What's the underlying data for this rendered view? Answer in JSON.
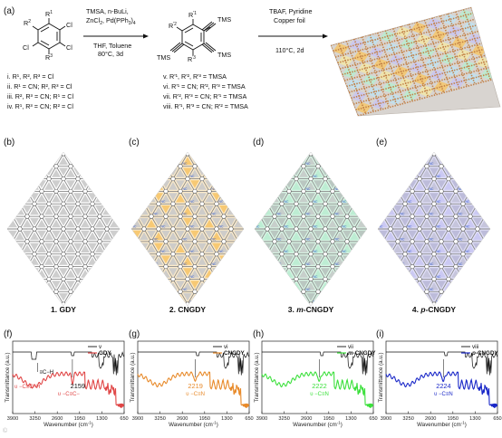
{
  "panels": {
    "a": "(a)",
    "b": "(b)",
    "c": "(c)",
    "d": "(d)",
    "e": "(e)",
    "f": "(f)",
    "g": "(g)",
    "h": "(h)",
    "i": "(i)"
  },
  "scheme": {
    "start_sub": {
      "r1": "R",
      "r1s": "1",
      "r2": "R",
      "r2s": "2",
      "r3": "R",
      "r3s": "3",
      "cl1": "Cl",
      "cl2": "Cl",
      "cl3": "Cl"
    },
    "reagents_top": [
      "TMSA, n-BuLi,",
      "ZnCl",
      "2",
      ", Pd(PPh",
      "3",
      ")",
      "4"
    ],
    "conditions_bottom": [
      "THF, Toluene",
      "80°C, 3d"
    ],
    "inter_sub": {
      "r1": "R",
      "r1s": "'1",
      "r2": "R",
      "r2s": "'2",
      "r3": "R",
      "r3s": "'3",
      "tms1": "TMS",
      "tms2": "TMS",
      "tms3": "TMS"
    },
    "reagents2_top": [
      "TBAF, Pyridine",
      "Copper foil"
    ],
    "conditions2_bottom": "110°C, 2d",
    "list_left": [
      "i. R¹, R², R³ = Cl",
      "ii. R¹ = CN; R², R³ = Cl",
      "iii. R², R³ = CN; R¹ = Cl",
      "iv. R¹, R³ = CN; R² = Cl"
    ],
    "list_right": [
      "v. R'¹, R'², R'³ = TMSA",
      "vi. R'¹ = CN; R'², R'³ = TMSA",
      "vii. R'², R'³ = CN; R'¹ = TMSA",
      "viii. R'¹, R'³ = CN; R'² = TMSA"
    ]
  },
  "structures": [
    {
      "num": "1.",
      "name": "GDY",
      "prefix": "",
      "italic": ""
    },
    {
      "num": "2.",
      "name": "CNGDY",
      "prefix": "",
      "italic": ""
    },
    {
      "num": "3.",
      "name": "-CNGDY",
      "prefix": "",
      "italic": "m"
    },
    {
      "num": "4.",
      "name": "-CNGDY",
      "prefix": "",
      "italic": "p"
    }
  ],
  "cn_label": "NC",
  "colors": {
    "gray_tile": "#c9c9c9",
    "orange_tile": "#f6c56a",
    "green_tile": "#b9ecd0",
    "blue_tile": "#c9c6f2",
    "lattice": "#8a8a8a",
    "cn_blue": "#2a55d0",
    "gdy_red": "#e04646",
    "cngdy_orange": "#e88a2a",
    "mcngdy_green": "#3ce03c",
    "pcngdy_blue": "#1a28c8"
  },
  "spectra_axes": {
    "ylabel": "Transmittance (a.u.)",
    "xlabel": "Wavenumber (cm",
    "xlabel_sup": "-1",
    "xlabel_end": ")",
    "ticks": [
      "3900",
      "3250",
      "2600",
      "1950",
      "1300",
      "650"
    ],
    "ticks_i": [
      "3900",
      "3250",
      "2600",
      "1950",
      "1300",
      "650"
    ]
  },
  "chart_data": [
    {
      "type": "line",
      "panel": "f",
      "xlabel": "Wavenumber (cm-1)",
      "ylabel": "Transmittance (a.u.)",
      "xlim": [
        3900,
        650
      ],
      "series": [
        {
          "name": "v"
        },
        {
          "name": "GDY"
        }
      ],
      "annotations": [
        {
          "text": "2159",
          "x": 2159
        },
        {
          "text": "υ −C≡C−",
          "x": 2159
        },
        {
          "text": "≡C−H",
          "x": 3280
        },
        {
          "text": "υ −C≡C−H",
          "x": 3280
        }
      ]
    },
    {
      "type": "line",
      "panel": "g",
      "xlabel": "Wavenumber (cm-1)",
      "ylabel": "Transmittance (a.u.)",
      "xlim": [
        3900,
        650
      ],
      "series": [
        {
          "name": "vi"
        },
        {
          "name": "CNGDY"
        }
      ],
      "annotations": [
        {
          "text": "2219",
          "x": 2219
        },
        {
          "text": "υ −C≡N",
          "x": 2219
        }
      ]
    },
    {
      "type": "line",
      "panel": "h",
      "xlabel": "Wavenumber (cm-1)",
      "ylabel": "Transmittance (a.u.)",
      "xlim": [
        3900,
        650
      ],
      "series": [
        {
          "name": "vii"
        },
        {
          "name": "m-CNGDY"
        }
      ],
      "annotations": [
        {
          "text": "2222",
          "x": 2222
        },
        {
          "text": "υ −C≡N",
          "x": 2222
        }
      ]
    },
    {
      "type": "line",
      "panel": "i",
      "xlabel": "Wavenumber (cm-1)",
      "ylabel": "Transmittance (a.u.)",
      "xlim": [
        3900,
        650
      ],
      "series": [
        {
          "name": "viii"
        },
        {
          "name": "p-CNGDY"
        }
      ],
      "annotations": [
        {
          "text": "2224",
          "x": 2224
        },
        {
          "text": "υ −C≡N",
          "x": 2224
        }
      ]
    }
  ],
  "watermark": "©"
}
